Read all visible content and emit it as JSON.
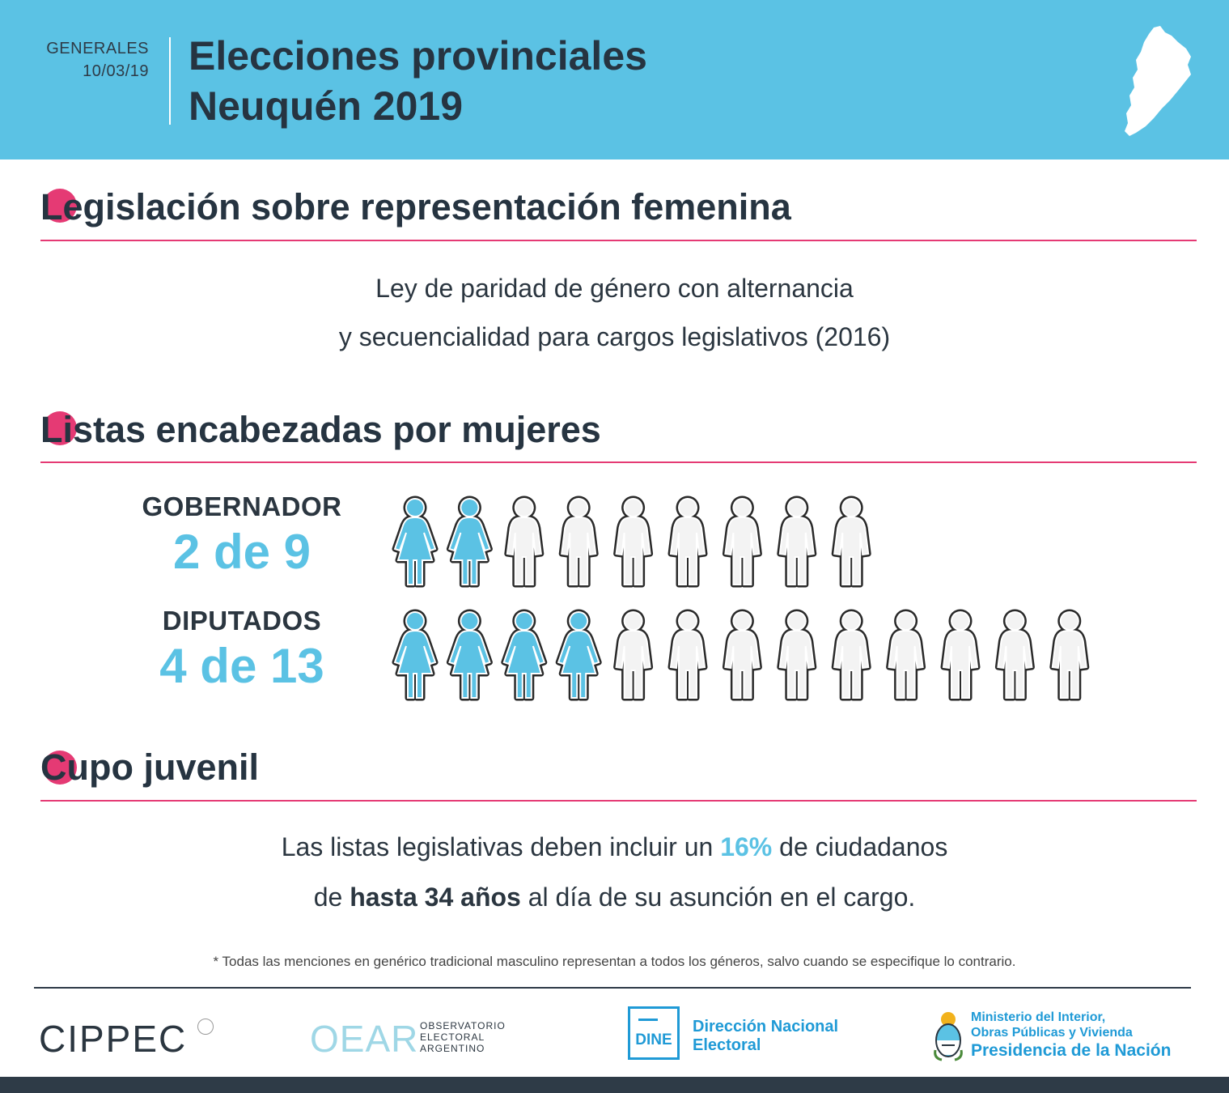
{
  "header": {
    "date_line1": "GENERALES",
    "date_line2": "10/03/19",
    "title_line1": "Elecciones provinciales",
    "title_line2": "Neuquén 2019",
    "map_icon": "neuquen-map-icon"
  },
  "colors": {
    "header_bg": "#5bc2e4",
    "accent_pink": "#e53a74",
    "accent_blue": "#5bc2e4",
    "dark": "#263441"
  },
  "sections": {
    "legislation": {
      "title": "Legislación sobre representación femenina",
      "line1": "Ley de paridad de género con alternancia",
      "line2": "y secuencialidad para cargos legislativos (2016)"
    },
    "lists": {
      "title": "Listas encabezadas por mujeres",
      "rows": [
        {
          "label": "GOBERNADOR",
          "value": "2 de 9",
          "women": 2,
          "total": 9
        },
        {
          "label": "DIPUTADOS",
          "value": "4 de 13",
          "women": 4,
          "total": 13
        }
      ]
    },
    "youth": {
      "title": "Cupo juvenil",
      "line1_a": "Las listas legislativas deben incluir un ",
      "line1_b": "16%",
      "line1_c": " de ciudadanos",
      "line2_a": "de ",
      "line2_b": "hasta 34 años",
      "line2_c": " al día de su asunción en el cargo."
    }
  },
  "footnote": "* Todas las menciones en genérico tradicional masculino representan a todos los géneros, salvo cuando se especifique lo contrario.",
  "footer": {
    "cippec": "CIPPEC",
    "oear_mark": "OEAR",
    "oear_line1": "OBSERVATORIO",
    "oear_line2": "ELECTORAL",
    "oear_line3": "ARGENTINO",
    "dine_mark": "DINE",
    "dine_line1": "Dirección Nacional",
    "dine_line2": "Electoral",
    "min_line1": "Ministerio del Interior,",
    "min_line2": "Obras Públicas y Vivienda",
    "min_line3": "Presidencia de la Nación"
  }
}
